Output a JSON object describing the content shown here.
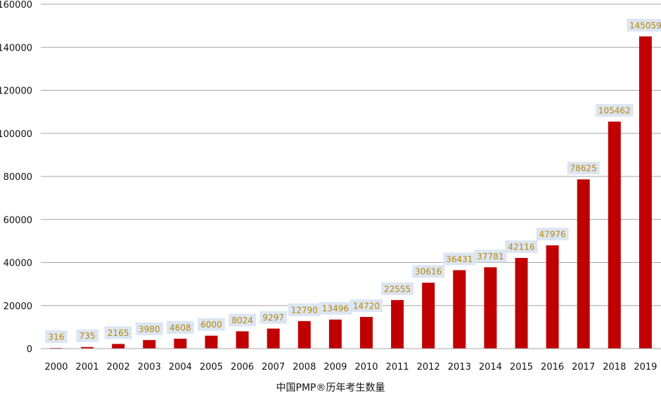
{
  "chart_data": {
    "type": "bar",
    "title": "中国PMP®历年考生数量",
    "xlabel": "",
    "ylabel": "",
    "categories": [
      "2000",
      "2001",
      "2002",
      "2003",
      "2004",
      "2005",
      "2006",
      "2007",
      "2008",
      "2009",
      "2010",
      "2011",
      "2012",
      "2013",
      "2014",
      "2015",
      "2016",
      "2017",
      "2018",
      "2019"
    ],
    "values": [
      316,
      735,
      2165,
      3980,
      4608,
      6000,
      8024,
      9297,
      12790,
      13496,
      14720,
      22555,
      30616,
      36431,
      37781,
      42116,
      47976,
      78625,
      105462,
      145059
    ],
    "ylim": [
      0,
      160000
    ],
    "yticks": [
      0,
      20000,
      40000,
      60000,
      80000,
      100000,
      120000,
      140000,
      160000
    ],
    "grid": true,
    "legend": "none",
    "colors": {
      "bar": "#c00000",
      "grid": "#a6a6a6",
      "label_bg": "#dce6f2",
      "label_text": "#b8860b"
    }
  }
}
